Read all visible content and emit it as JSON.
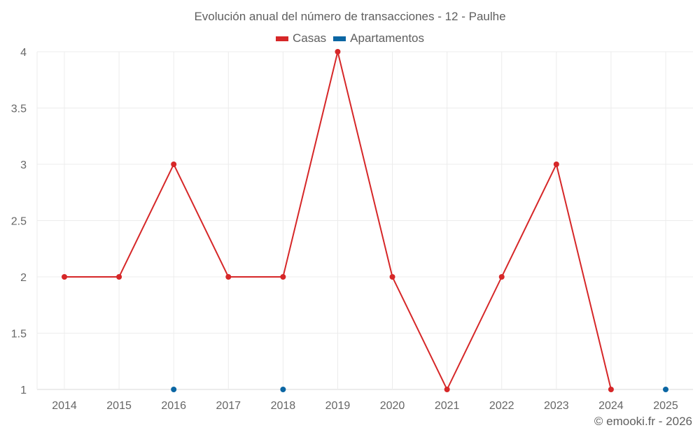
{
  "chart_data": {
    "type": "line",
    "title": "Evolución anual del número de transacciones - 12 - Paulhe",
    "xlabel": "",
    "ylabel": "",
    "categories": [
      "2014",
      "2015",
      "2016",
      "2017",
      "2018",
      "2019",
      "2020",
      "2021",
      "2022",
      "2023",
      "2024",
      "2025"
    ],
    "series": [
      {
        "name": "Casas",
        "color": "#d62728",
        "values": [
          2,
          2,
          3,
          2,
          2,
          4,
          2,
          1,
          2,
          3,
          1,
          null
        ],
        "line": true
      },
      {
        "name": "Apartamentos",
        "color": "#0b66a3",
        "values": [
          null,
          null,
          1,
          null,
          1,
          null,
          null,
          null,
          null,
          null,
          null,
          1
        ],
        "line": false
      }
    ],
    "ylim": [
      1,
      4
    ],
    "yticks": [
      "1",
      "1.5",
      "2",
      "2.5",
      "3",
      "3.5",
      "4"
    ],
    "grid": true,
    "legend_position": "top"
  },
  "header": {
    "title": "Evolución anual del número de transacciones - 12 - Paulhe"
  },
  "legend": {
    "items": [
      {
        "label": "Casas",
        "color": "#d62728"
      },
      {
        "label": "Apartamentos",
        "color": "#0b66a3"
      }
    ]
  },
  "footer": {
    "credit": "© emooki.fr - 2026"
  }
}
